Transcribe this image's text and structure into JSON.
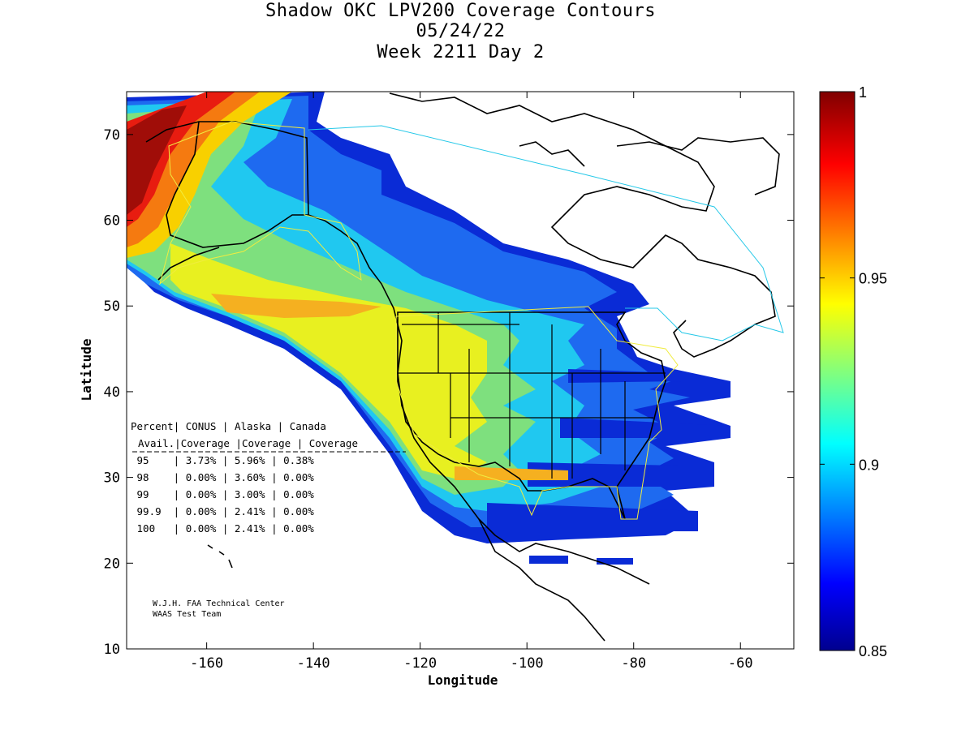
{
  "title": {
    "line1": "Shadow OKC LPV200 Coverage Contours",
    "line2": "05/24/22",
    "line3": "Week 2211 Day 2"
  },
  "map": {
    "xlabel": "Longitude",
    "ylabel": "Latitude",
    "xlim": [
      -175,
      -50
    ],
    "ylim": [
      10,
      75
    ],
    "xticks": [
      -160,
      -140,
      -120,
      -100,
      -80,
      -60
    ],
    "yticks": [
      10,
      20,
      30,
      40,
      50,
      60,
      70
    ],
    "tick_labels_x": [
      "-160",
      "-140",
      "-120",
      "-100",
      "-80",
      "-60"
    ],
    "tick_labels_y": [
      "10",
      "20",
      "30",
      "40",
      "50",
      "60",
      "70"
    ]
  },
  "colorbar": {
    "range": [
      0.85,
      1
    ],
    "tick_labels": [
      "1",
      "0.95",
      "0.9",
      "0.85"
    ],
    "colormap": "jet"
  },
  "coverage_table": {
    "header1": [
      "Percent",
      "CONUS",
      "Alaska",
      "Canada"
    ],
    "header2": [
      "Avail.",
      "Coverage",
      "Coverage",
      "Coverage"
    ],
    "rows": [
      {
        "avail": "95",
        "conus": "3.73%",
        "alaska": "5.96%",
        "canada": "0.38%"
      },
      {
        "avail": "98",
        "conus": "0.00%",
        "alaska": "3.60%",
        "canada": "0.00%"
      },
      {
        "avail": "99",
        "conus": "0.00%",
        "alaska": "3.00%",
        "canada": "0.00%"
      },
      {
        "avail": "99.9",
        "conus": "0.00%",
        "alaska": "2.41%",
        "canada": "0.00%"
      },
      {
        "avail": "100",
        "conus": "0.00%",
        "alaska": "2.41%",
        "canada": "0.00%"
      }
    ]
  },
  "credit": {
    "line1": "W.J.H. FAA Technical Center",
    "line2": "WAAS Test Team"
  }
}
